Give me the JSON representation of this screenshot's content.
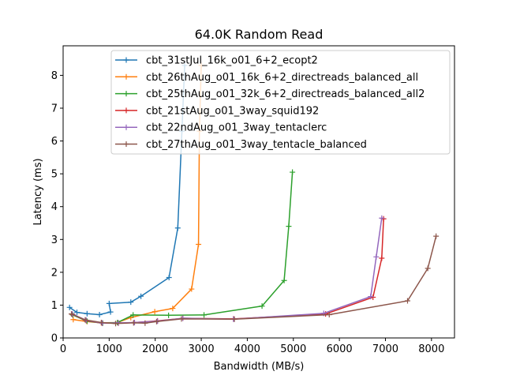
{
  "chart_data": {
    "type": "line",
    "title": "64.0K  Random Read",
    "xlabel": "Bandwidth (MB/s)",
    "ylabel": "Latency (ms)",
    "xlim": [
      0,
      8500
    ],
    "ylim": [
      0,
      8.9
    ],
    "xticks": [
      "0",
      "1000",
      "2000",
      "3000",
      "4000",
      "5000",
      "6000",
      "7000",
      "8000"
    ],
    "yticks": [
      "0",
      "1",
      "2",
      "3",
      "4",
      "5",
      "6",
      "7",
      "8"
    ],
    "legend_position": "top-right",
    "grid": false,
    "series": [
      {
        "name": "cbt_31stJul_16k_o01_6+2_ecopt2",
        "color": "#1f77b4",
        "points": [
          [
            140,
            0.93
          ],
          [
            300,
            0.78
          ],
          [
            520,
            0.74
          ],
          [
            790,
            0.71
          ],
          [
            1030,
            0.79
          ],
          [
            1000,
            1.05
          ],
          [
            1470,
            1.09
          ],
          [
            1690,
            1.27
          ],
          [
            2300,
            1.84
          ],
          [
            2490,
            3.35
          ],
          [
            2580,
            6.3
          ],
          [
            2640,
            8.3
          ]
        ]
      },
      {
        "name": "cbt_26thAug_o01_16k_6+2_directreads_balanced_all",
        "color": "#ff7f0e",
        "points": [
          [
            220,
            0.56
          ],
          [
            520,
            0.5
          ],
          [
            830,
            0.46
          ],
          [
            1180,
            0.47
          ],
          [
            1470,
            0.62
          ],
          [
            1990,
            0.8
          ],
          [
            2380,
            0.9
          ],
          [
            2790,
            1.49
          ],
          [
            2940,
            2.85
          ],
          [
            2960,
            6.3
          ],
          [
            3000,
            8.3
          ]
        ]
      },
      {
        "name": "cbt_25thAug_o01_32k_6+2_directreads_balanced_all2",
        "color": "#2ca02c",
        "points": [
          [
            210,
            0.7
          ],
          [
            520,
            0.51
          ],
          [
            860,
            0.45
          ],
          [
            1180,
            0.47
          ],
          [
            1520,
            0.7
          ],
          [
            2290,
            0.69
          ],
          [
            3060,
            0.7
          ],
          [
            4320,
            0.97
          ],
          [
            4800,
            1.75
          ],
          [
            4900,
            3.4
          ],
          [
            4980,
            5.05
          ]
        ]
      },
      {
        "name": "cbt_21stAug_o01_3way_squid192",
        "color": "#d62728",
        "points": [
          [
            200,
            0.72
          ],
          [
            500,
            0.53
          ],
          [
            850,
            0.45
          ],
          [
            1200,
            0.45
          ],
          [
            1550,
            0.47
          ],
          [
            2050,
            0.52
          ],
          [
            2600,
            0.6
          ],
          [
            3700,
            0.58
          ],
          [
            5700,
            0.73
          ],
          [
            6730,
            1.24
          ],
          [
            6920,
            2.43
          ],
          [
            6960,
            3.63
          ]
        ]
      },
      {
        "name": "cbt_22ndAug_o01_3way_tentaclerc",
        "color": "#9467bd",
        "points": [
          [
            200,
            0.73
          ],
          [
            500,
            0.54
          ],
          [
            850,
            0.45
          ],
          [
            1200,
            0.46
          ],
          [
            1550,
            0.47
          ],
          [
            2050,
            0.51
          ],
          [
            2600,
            0.6
          ],
          [
            3700,
            0.57
          ],
          [
            5660,
            0.75
          ],
          [
            6680,
            1.26
          ],
          [
            6800,
            2.47
          ],
          [
            6920,
            3.65
          ]
        ]
      },
      {
        "name": "cbt_27thAug_o01_3way_tentacle_balanced",
        "color": "#8c564b",
        "points": [
          [
            180,
            0.73
          ],
          [
            480,
            0.55
          ],
          [
            830,
            0.47
          ],
          [
            1140,
            0.44
          ],
          [
            1530,
            0.46
          ],
          [
            1780,
            0.45
          ],
          [
            2030,
            0.5
          ],
          [
            2570,
            0.58
          ],
          [
            3720,
            0.57
          ],
          [
            5780,
            0.71
          ],
          [
            7480,
            1.13
          ],
          [
            7920,
            2.12
          ],
          [
            8100,
            3.1
          ]
        ]
      }
    ]
  }
}
